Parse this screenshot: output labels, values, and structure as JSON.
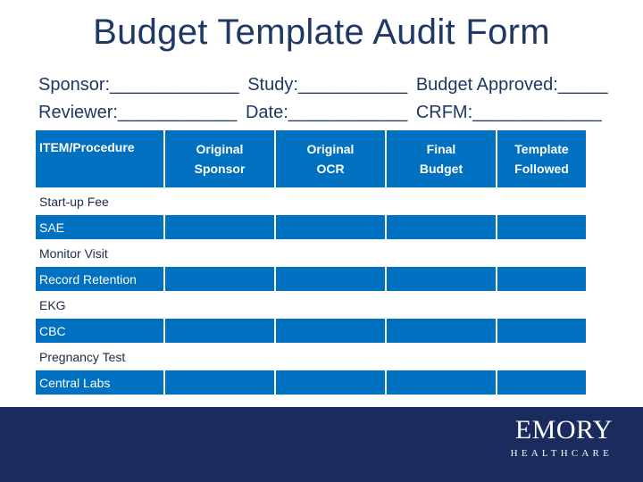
{
  "title": "Budget Template Audit Form",
  "fields": {
    "line1": {
      "sponsor": "Sponsor:_____________",
      "study": "Study:___________",
      "budget_approved": "Budget Approved:_____"
    },
    "line2": {
      "reviewer": "Reviewer:____________",
      "date": "Date:____________",
      "crfm": "CRFM:_____________"
    }
  },
  "table": {
    "headers": [
      [
        "ITEM/Procedure"
      ],
      [
        "Original",
        "Sponsor"
      ],
      [
        "Original",
        "OCR"
      ],
      [
        "Final",
        "Budget"
      ],
      [
        "Template",
        "Followed"
      ]
    ],
    "rows": [
      "Start-up Fee",
      "SAE",
      "Monitor Visit",
      "Record Retention",
      "EKG",
      "CBC",
      "Pregnancy Test",
      "Central Labs"
    ]
  },
  "logo": {
    "word": "EMORY",
    "sub": "HEALTHCARE"
  },
  "colors": {
    "title": "#1f3864",
    "header_blue": "#0070c0",
    "footer_navy": "#1a2b5e"
  }
}
